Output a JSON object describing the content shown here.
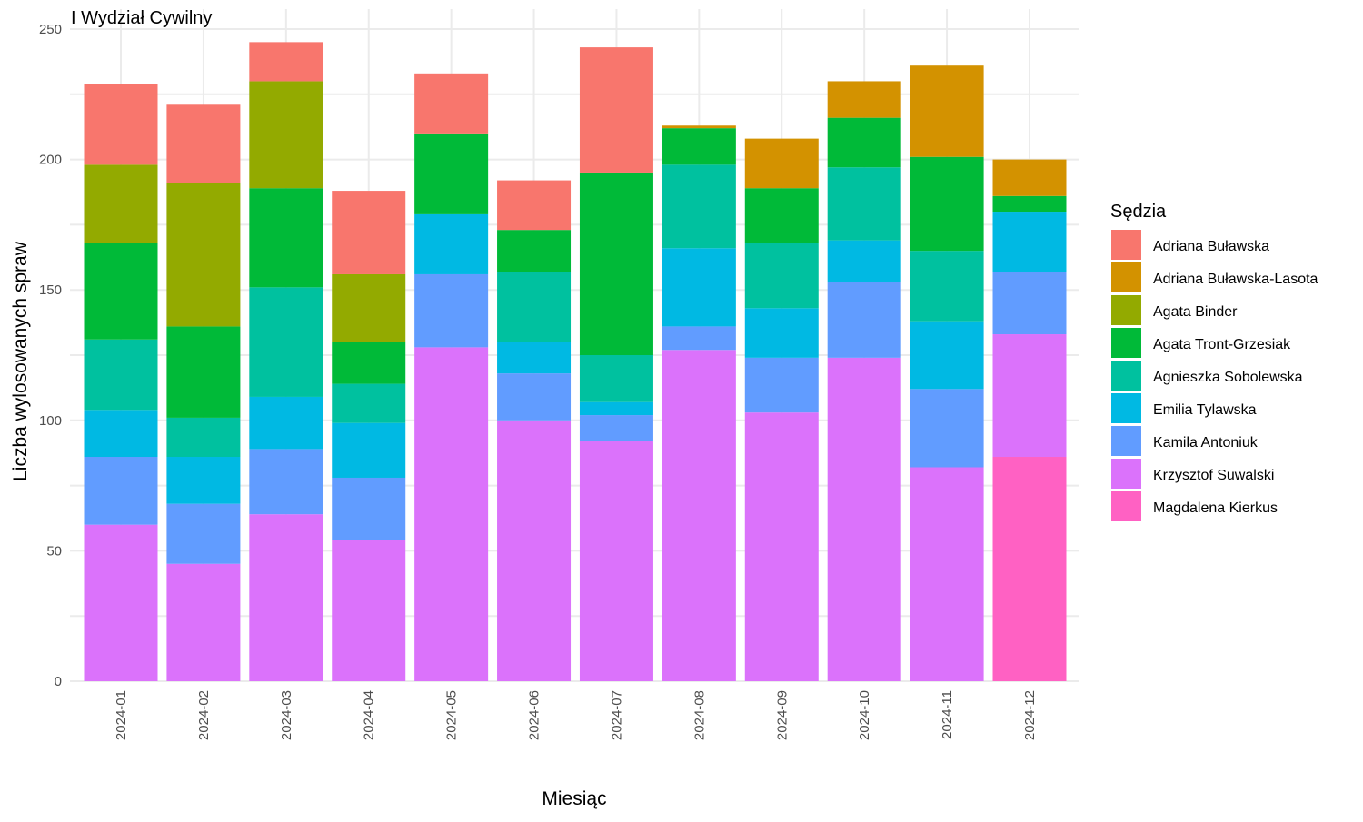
{
  "chart_data": {
    "type": "bar",
    "stacked": true,
    "title": "I Wydział Cywilny",
    "xlabel": "Miesiąc",
    "ylabel": "Liczba wylosowanych spraw",
    "ylim": [
      0,
      250
    ],
    "yticks": [
      0,
      50,
      100,
      150,
      200,
      250
    ],
    "grid": true,
    "legend": {
      "title": "Sędzia",
      "position": "right"
    },
    "categories": [
      "2024-01",
      "2024-02",
      "2024-03",
      "2024-04",
      "2024-05",
      "2024-06",
      "2024-07",
      "2024-08",
      "2024-09",
      "2024-10",
      "2024-11",
      "2024-12"
    ],
    "series": [
      {
        "name": "Magdalena Kierkus",
        "color": "#FF61C3",
        "values": [
          0,
          0,
          0,
          0,
          0,
          0,
          0,
          0,
          0,
          0,
          0,
          86
        ]
      },
      {
        "name": "Krzysztof Suwalski",
        "color": "#DB72FB",
        "values": [
          60,
          45,
          64,
          54,
          128,
          100,
          92,
          127,
          103,
          124,
          82,
          47
        ]
      },
      {
        "name": "Kamila Antoniuk",
        "color": "#619CFF",
        "values": [
          26,
          23,
          25,
          24,
          28,
          18,
          10,
          9,
          21,
          29,
          30,
          24
        ]
      },
      {
        "name": "Emilia Tylawska",
        "color": "#00B9E3",
        "values": [
          18,
          18,
          20,
          21,
          23,
          12,
          5,
          30,
          19,
          16,
          26,
          23
        ]
      },
      {
        "name": "Agnieszka Sobolewska",
        "color": "#00C19F",
        "values": [
          27,
          15,
          42,
          15,
          0,
          27,
          18,
          32,
          25,
          28,
          27,
          0
        ]
      },
      {
        "name": "Agata Tront-Grzesiak",
        "color": "#00BA38",
        "values": [
          37,
          35,
          38,
          16,
          31,
          16,
          70,
          14,
          21,
          19,
          36,
          6
        ]
      },
      {
        "name": "Agata Binder",
        "color": "#93AA00",
        "values": [
          30,
          55,
          41,
          26,
          0,
          0,
          0,
          0,
          0,
          0,
          0,
          0
        ]
      },
      {
        "name": "Adriana Buławska-Lasota",
        "color": "#D39200",
        "values": [
          0,
          0,
          0,
          0,
          0,
          0,
          0,
          1,
          19,
          14,
          35,
          14
        ]
      },
      {
        "name": "Adriana Buławska",
        "color": "#F8766D",
        "values": [
          31,
          30,
          15,
          32,
          23,
          19,
          48,
          0,
          0,
          0,
          0,
          0
        ]
      }
    ],
    "legend_order": [
      "Adriana Buławska",
      "Adriana Buławska-Lasota",
      "Agata Binder",
      "Agata Tront-Grzesiak",
      "Agnieszka Sobolewska",
      "Emilia Tylawska",
      "Kamila Antoniuk",
      "Krzysztof Suwalski",
      "Magdalena Kierkus"
    ]
  }
}
